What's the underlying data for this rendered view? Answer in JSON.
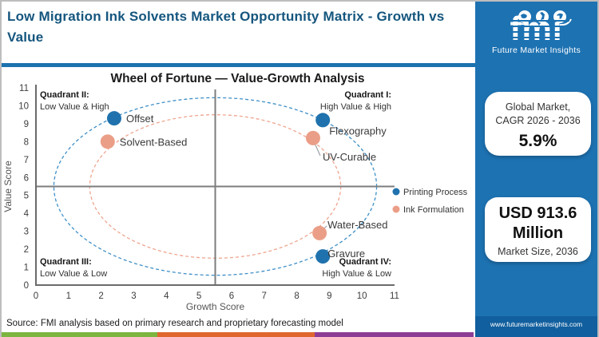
{
  "header": {
    "title": "Low Migration Ink Solvents Market  Opportunity Matrix - Growth vs Value"
  },
  "chart_data": {
    "type": "scatter",
    "title": "Wheel of Fortune — Value-Growth Analysis",
    "xlabel": "Growth Score",
    "ylabel": "Value Score",
    "xlim": [
      0,
      11
    ],
    "ylim": [
      0,
      11
    ],
    "xticks": [
      0,
      1,
      2,
      3,
      4,
      5,
      6,
      7,
      8,
      9,
      10,
      11
    ],
    "yticks": [
      0,
      1,
      2,
      3,
      4,
      5,
      6,
      7,
      8,
      9,
      10,
      11
    ],
    "grid": false,
    "divider": {
      "x": 5.5,
      "y": 5.5
    },
    "rings": [
      {
        "name": "printing-process-ring",
        "color": "#3e8fc7",
        "cx": 5.5,
        "cy": 5.5,
        "rx": 4.95,
        "ry": 4.95
      },
      {
        "name": "ink-formulation-ring",
        "color": "#efa58f",
        "cx": 5.5,
        "cy": 5.5,
        "rx": 3.85,
        "ry": 4.0
      }
    ],
    "quadrants": [
      {
        "title": "Quadrant II:",
        "subtitle": "Low Value & High",
        "corner": "top-left"
      },
      {
        "title": "Quadrant I:",
        "subtitle": "High Value & High",
        "corner": "top-right"
      },
      {
        "title": "Quadrant III:",
        "subtitle": "Low Value & Low",
        "corner": "bottom-left"
      },
      {
        "title": "Quadrant IV:",
        "subtitle": "High Value & Low",
        "corner": "bottom-right"
      }
    ],
    "series": [
      {
        "name": "Printing Process",
        "color": "#1f72ad",
        "points": [
          {
            "label": "Offset",
            "x": 2.4,
            "y": 9.3,
            "placement": "right"
          },
          {
            "label": "Flexography",
            "x": 8.8,
            "y": 9.2,
            "placement": "below-right"
          },
          {
            "label": "Gravure",
            "x": 8.8,
            "y": 1.6,
            "placement": "right-tight"
          }
        ]
      },
      {
        "name": "Ink Formulation",
        "color": "#eb9e87",
        "points": [
          {
            "label": "Solvent-Based",
            "x": 2.2,
            "y": 8.0,
            "placement": "right"
          },
          {
            "label": "UV-Curable",
            "x": 8.5,
            "y": 8.2,
            "placement": "leader-down"
          },
          {
            "label": "Water-Based",
            "x": 8.7,
            "y": 2.9,
            "placement": "leader-up"
          }
        ]
      }
    ],
    "legend_position": "right"
  },
  "sidebar": {
    "logo": {
      "acronym": "fmi",
      "tagline": "Future Market Insights"
    },
    "cagr_card": {
      "title_line1": "Global Market,",
      "title_line2": "CAGR 2026 - 2036",
      "value": "5.9%"
    },
    "market_card": {
      "value_line1": "USD 913.6",
      "value_line2": "Million",
      "caption": "Market Size, 2036"
    },
    "website": "www.futuremarketinsights.com"
  },
  "footer": {
    "source": "Source: FMI analysis based on primary research and proprietary forecasting model"
  },
  "colors": {
    "title_blue": "#15567e",
    "rule_blue": "#1b72ae",
    "sidebar_blue": "#1d72b2",
    "sidebar_footer_blue": "#115f9e",
    "printing_process": "#1f72ad",
    "ink_formulation": "#eb9e87",
    "strip_green": "#7cb53f",
    "strip_orange": "#df672f",
    "strip_purple": "#8e3d96"
  }
}
